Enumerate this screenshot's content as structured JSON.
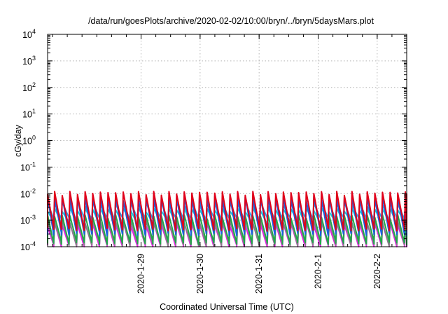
{
  "chart_data": {
    "type": "line",
    "title": "/data/run/goesPlots/archive/2020-02-02/10:00/bryn/../bryn/5daysMars.plot",
    "xlabel": "Coordinated Universal Time (UTC)",
    "ylabel": "cGy/day",
    "yscale": "log",
    "ylim": [
      0.0001,
      10000
    ],
    "xlim": [
      "2020-01-27 10:00",
      "2020-02-02 12:00"
    ],
    "y_ticks": [
      {
        "mant": "10",
        "exp": "-4"
      },
      {
        "mant": "10",
        "exp": "-3"
      },
      {
        "mant": "10",
        "exp": "-2"
      },
      {
        "mant": "10",
        "exp": "-1"
      },
      {
        "mant": "10",
        "exp": "0"
      },
      {
        "mant": "10",
        "exp": "1"
      },
      {
        "mant": "10",
        "exp": "2"
      },
      {
        "mant": "10",
        "exp": "3"
      },
      {
        "mant": "10",
        "exp": "4"
      }
    ],
    "x_ticks": [
      "2020-1-29",
      "2020-1-30",
      "2020-1-31",
      "2020-2-1",
      "2020-2-2"
    ],
    "grid": true,
    "legend": "none",
    "sawtooth_period_hours": 3.1,
    "series": [
      {
        "color": "#e0001a",
        "peak": 0.0105,
        "trough": 0.00045
      },
      {
        "color": "#1b5fe0",
        "peak": 0.0068,
        "trough": 0.0003
      },
      {
        "color": "#2aa0e8",
        "peak": 0.0042,
        "trough": 0.0011
      },
      {
        "color": "#19c8d8",
        "peak": 0.0025,
        "trough": 0.0008
      },
      {
        "color": "#1fa84a",
        "peak": 0.0014,
        "trough": 0.00014
      },
      {
        "color": "#8a7d8a",
        "peak": 0.0009,
        "trough": 0.00012
      },
      {
        "color": "#e61ee6",
        "peak": 0.00072,
        "trough": 0.0001
      }
    ]
  }
}
